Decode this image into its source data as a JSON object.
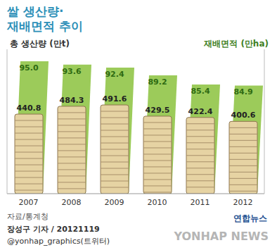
{
  "chart_data": {
    "type": "bar",
    "title": "쌀 생산량·재배면적 추이",
    "categories": [
      "2007",
      "2008",
      "2009",
      "2010",
      "2011",
      "2012"
    ],
    "series": [
      {
        "name": "재배면적 (만ha)",
        "axis": "y2",
        "color": "#9ccb5a",
        "values": [
          95.0,
          93.6,
          92.4,
          89.2,
          85.4,
          84.9
        ],
        "value_labels": [
          "95.0",
          "93.6",
          "92.4",
          "89.2",
          "85.4",
          "84.9"
        ]
      },
      {
        "name": "총 생산량 (만t)",
        "color": "#e6d3a3",
        "values": [
          440.8,
          484.3,
          491.6,
          429.5,
          422.4,
          400.6
        ],
        "value_labels": [
          "440.8",
          "484.3",
          "491.6",
          "429.5",
          "422.4",
          "400.6"
        ]
      }
    ],
    "ylim": [
      0,
      800
    ],
    "y2lim": [
      40,
      100
    ],
    "data_labels": true,
    "tick_labels": "x",
    "source": "자료/통계청",
    "byline": "장성구 기자 / 20121119",
    "twitter": "@yonhap_graphics(트위터)",
    "logo": "연합뉴스",
    "watermark": "YONHAP NEWS"
  }
}
